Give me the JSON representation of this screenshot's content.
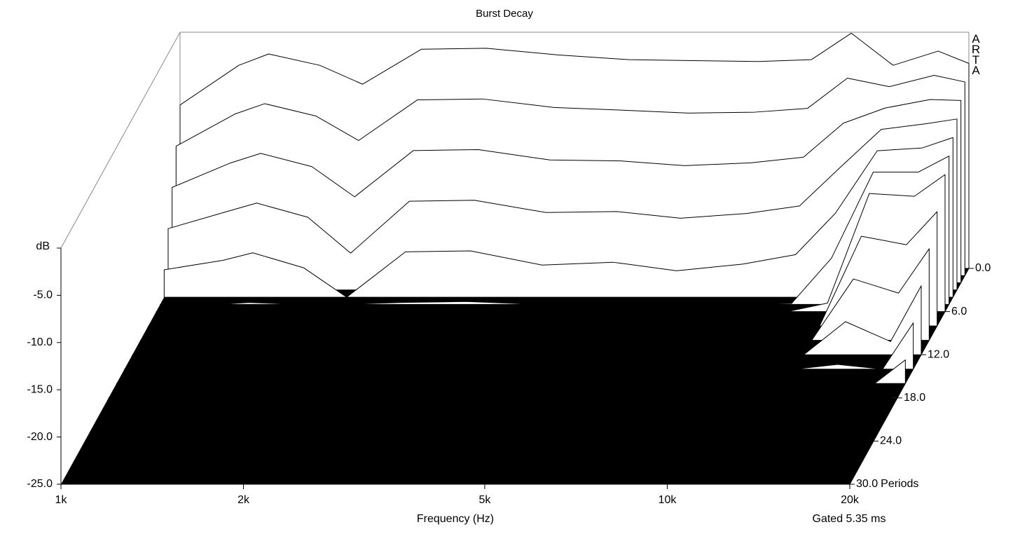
{
  "chart_data": {
    "type": "waterfall",
    "title": "Burst Decay",
    "x_label": "Frequency (Hz)",
    "y_label": "dB",
    "z_label": "Periods",
    "annotation": "Gated 5.35 ms",
    "brand": "ARTA",
    "xlog": true,
    "xlim": [
      1000,
      20000
    ],
    "xticks": [
      {
        "value": 1000,
        "label": "1k"
      },
      {
        "value": 2000,
        "label": "2k"
      },
      {
        "value": 5000,
        "label": "5k"
      },
      {
        "value": 10000,
        "label": "10k"
      },
      {
        "value": 20000,
        "label": "20k"
      }
    ],
    "ylim": [
      -25,
      0
    ],
    "yticks": [
      {
        "value": -5,
        "label": "-5.0"
      },
      {
        "value": -10,
        "label": "-10.0"
      },
      {
        "value": -15,
        "label": "-15.0"
      },
      {
        "value": -20,
        "label": "-20.0"
      },
      {
        "value": -25,
        "label": "-25.0"
      }
    ],
    "zlim": [
      0,
      30
    ],
    "zticks": [
      {
        "value": 0,
        "label": "0.0"
      },
      {
        "value": 6,
        "label": "6.0"
      },
      {
        "value": 12,
        "label": "12.0"
      },
      {
        "value": 18,
        "label": "18.0"
      },
      {
        "value": 24,
        "label": "24.0"
      },
      {
        "value": 30,
        "label": "30.0"
      }
    ],
    "line_color": "#000000",
    "surface_color": "#ffffff",
    "floor_color": "#000000",
    "x": [
      1000,
      1250,
      1400,
      1700,
      2000,
      2500,
      3200,
      4200,
      5500,
      7000,
      9000,
      11000,
      12800,
      15000,
      17800,
      20000
    ],
    "z": [
      0,
      1,
      2,
      3,
      4,
      5,
      6,
      8,
      10,
      12,
      14,
      16,
      18
    ],
    "values": [
      [
        -7.7,
        -3.5,
        -2.3,
        -3.5,
        -5.5,
        -1.8,
        -1.7,
        -2.4,
        -2.9,
        -3.0,
        -3.1,
        -2.9,
        -0.1,
        -3.5,
        -2.0,
        -3.3
      ],
      [
        -11.3,
        -7.9,
        -6.8,
        -8.1,
        -10.7,
        -6.4,
        -6.3,
        -7.2,
        -7.5,
        -7.8,
        -7.7,
        -7.3,
        -4.1,
        -5.0,
        -3.8,
        -4.5
      ],
      [
        -14.9,
        -12.3,
        -11.3,
        -12.7,
        -15.9,
        -11.0,
        -10.9,
        -12.0,
        -12.1,
        -12.6,
        -12.3,
        -11.7,
        -8.1,
        -6.5,
        -5.6,
        -5.7
      ],
      [
        -18.5,
        -16.7,
        -15.8,
        -17.3,
        -21.1,
        -15.6,
        -15.5,
        -16.8,
        -16.7,
        -17.4,
        -16.9,
        -16.1,
        -12.1,
        -8.0,
        -7.4,
        -6.9
      ],
      [
        -22.1,
        -21.1,
        -20.3,
        -21.9,
        -25,
        -20.2,
        -20.1,
        -21.6,
        -21.3,
        -22.2,
        -21.5,
        -20.5,
        -16.1,
        -9.5,
        -9.2,
        -8.1
      ],
      [
        -25,
        -25,
        -24.8,
        -25,
        -25,
        -24.8,
        -24.7,
        -25,
        -25,
        -25,
        -25,
        -24.9,
        -20.1,
        -11.0,
        -11.0,
        -9.3
      ],
      [
        -25,
        -25,
        -25,
        -25,
        -25,
        -25,
        -25,
        -25,
        -25,
        -25,
        -25,
        -25,
        -24.1,
        -12.5,
        -12.8,
        -10.5
      ],
      [
        -25,
        -25,
        -25,
        -25,
        -25,
        -25,
        -25,
        -25,
        -25,
        -25,
        -25,
        -25,
        -25,
        -15.5,
        -16.4,
        -12.9
      ],
      [
        -25,
        -25,
        -25,
        -25,
        -25,
        -25,
        -25,
        -25,
        -25,
        -25,
        -25,
        -25,
        -25,
        -18.5,
        -20.0,
        -15.3
      ],
      [
        -25,
        -25,
        -25,
        -25,
        -25,
        -25,
        -25,
        -25,
        -25,
        -25,
        -25,
        -25,
        -25,
        -21.5,
        -23.6,
        -17.7
      ],
      [
        -25,
        -25,
        -25,
        -25,
        -25,
        -25,
        -25,
        -25,
        -25,
        -25,
        -25,
        -25,
        -25,
        -24.5,
        -25,
        -20.1
      ],
      [
        -25,
        -25,
        -25,
        -25,
        -25,
        -25,
        -25,
        -25,
        -25,
        -25,
        -25,
        -25,
        -25,
        -25,
        -25,
        -22.5
      ],
      [
        -25,
        -25,
        -25,
        -25,
        -25,
        -25,
        -25,
        -25,
        -25,
        -25,
        -25,
        -25,
        -25,
        -25,
        -25,
        -24.9
      ]
    ]
  }
}
